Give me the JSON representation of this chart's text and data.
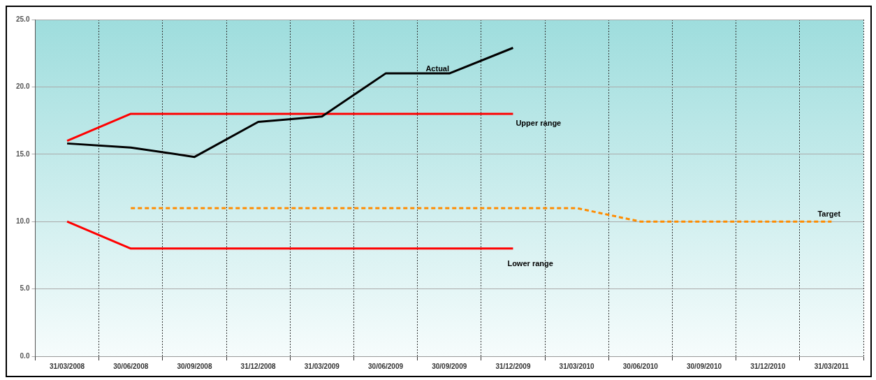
{
  "chart_data": {
    "type": "line",
    "categories": [
      "31/03/2008",
      "30/06/2008",
      "30/09/2008",
      "31/12/2008",
      "31/03/2009",
      "30/06/2009",
      "30/09/2009",
      "31/12/2009",
      "31/03/2010",
      "30/06/2010",
      "30/09/2010",
      "31/12/2010",
      "31/03/2011"
    ],
    "series": [
      {
        "name": "Actual",
        "color": "#000000",
        "values": [
          15.8,
          15.5,
          14.8,
          17.4,
          17.8,
          21.0,
          21.0,
          22.9,
          null,
          null,
          null,
          null,
          null
        ]
      },
      {
        "name": "Upper range",
        "color": "#ff0000",
        "values": [
          16,
          18,
          18,
          18,
          18,
          18,
          18,
          18,
          null,
          null,
          null,
          null,
          null
        ]
      },
      {
        "name": "Lower range",
        "color": "#ff0000",
        "values": [
          10,
          8,
          8,
          8,
          8,
          8,
          8,
          8,
          null,
          null,
          null,
          null,
          null
        ]
      },
      {
        "name": "Target",
        "color": "#ff8c00",
        "line_style": "dashed",
        "values": [
          null,
          11,
          11,
          11,
          11,
          11,
          11,
          11,
          11,
          10,
          10,
          10,
          10
        ]
      }
    ],
    "ylim": [
      0,
      25
    ],
    "yticks": [
      {
        "value": 0,
        "label": "0.0"
      },
      {
        "value": 5,
        "label": "5.0"
      },
      {
        "value": 10,
        "label": "10.0"
      },
      {
        "value": 15,
        "label": "15.0"
      },
      {
        "value": 20,
        "label": "20.0"
      },
      {
        "value": 25,
        "label": "25.0"
      }
    ],
    "grid": true,
    "legend": false,
    "marker": "none",
    "line_style": "solid"
  }
}
